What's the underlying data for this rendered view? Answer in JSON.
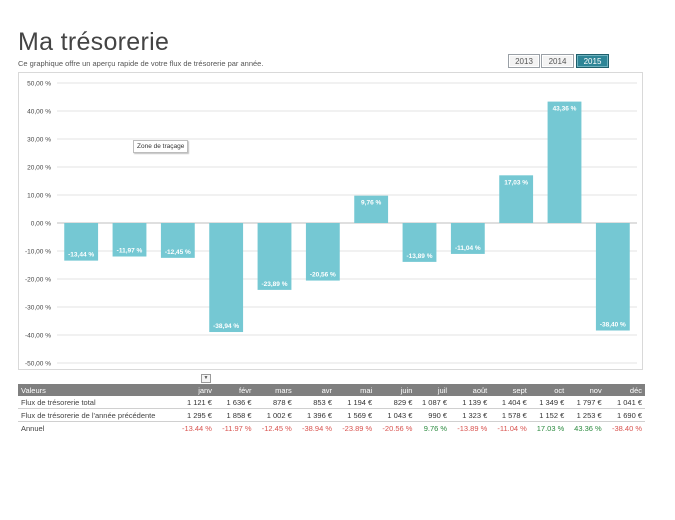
{
  "header": {
    "title": "Ma trésorerie",
    "subtitle": "Ce graphique offre un aperçu rapide de votre flux de trésorerie par année."
  },
  "slicers": [
    {
      "label": "2013",
      "selected": false
    },
    {
      "label": "2014",
      "selected": false
    },
    {
      "label": "2015",
      "selected": true
    }
  ],
  "tooltip": "Zone de traçage",
  "filter_glyph": "▼",
  "chart_data": {
    "type": "bar",
    "categories": [
      "janv",
      "févr",
      "mars",
      "avr",
      "mai",
      "juin",
      "juil",
      "août",
      "sept",
      "oct",
      "nov",
      "déc"
    ],
    "values": [
      -13.44,
      -11.97,
      -12.45,
      -38.94,
      -23.89,
      -20.56,
      9.76,
      -13.89,
      -11.04,
      17.03,
      43.36,
      -38.4
    ],
    "data_labels": [
      "-13,44 %",
      "-11,97 %",
      "-12,45 %",
      "-38,94 %",
      "-23,89 %",
      "-20,56 %",
      "9,76 %",
      "-13,89 %",
      "-11,04 %",
      "17,03 %",
      "43,36 %",
      "-38,40 %"
    ],
    "y_ticks": [
      50,
      40,
      30,
      20,
      10,
      0,
      -10,
      -20,
      -30,
      -40,
      -50
    ],
    "y_tick_labels": [
      "50,00 %",
      "40,00 %",
      "30,00 %",
      "20,00 %",
      "10,00 %",
      "0,00 %",
      "-10,00 %",
      "-20,00 %",
      "-30,00 %",
      "-40,00 %",
      "-50,00 %"
    ],
    "ylim": [
      -50,
      50
    ],
    "grid": true,
    "bar_color": "#75c8d3"
  },
  "table": {
    "header_label": "Valeurs",
    "months": [
      "janv",
      "févr",
      "mars",
      "avr",
      "mai",
      "juin",
      "juil",
      "août",
      "sept",
      "oct",
      "nov",
      "déc"
    ],
    "rows": [
      {
        "label": "Flux de trésorerie total",
        "values": [
          "1 121 €",
          "1 636 €",
          "878 €",
          "853 €",
          "1 194 €",
          "829 €",
          "1 087 €",
          "1 139 €",
          "1 404 €",
          "1 349 €",
          "1 797 €",
          "1 041 €"
        ]
      },
      {
        "label": "Flux de trésorerie de l'année précédente",
        "values": [
          "1 295 €",
          "1 858 €",
          "1 002 €",
          "1 396 €",
          "1 569 €",
          "1 043 €",
          "990 €",
          "1 323 €",
          "1 578 €",
          "1 152 €",
          "1 253 €",
          "1 690 €"
        ]
      }
    ],
    "annual": {
      "label": "Annuel",
      "values": [
        "-13.44 %",
        "-11.97 %",
        "-12.45 %",
        "-38.94 %",
        "-23.89 %",
        "-20.56 %",
        "9.76 %",
        "-13.89 %",
        "-11.04 %",
        "17.03 %",
        "43.36 %",
        "-38.40 %"
      ],
      "positive": [
        false,
        false,
        false,
        false,
        false,
        false,
        true,
        false,
        false,
        true,
        true,
        false
      ]
    }
  }
}
